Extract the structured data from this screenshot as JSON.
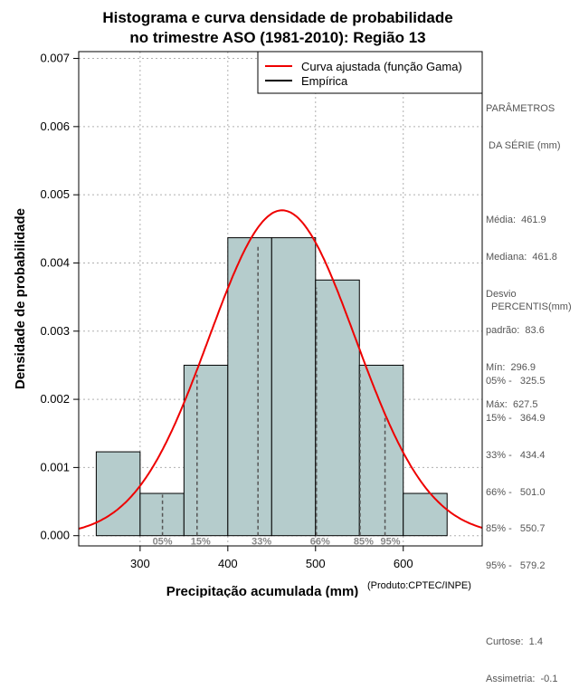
{
  "chart_data": {
    "type": "histogram",
    "title_line1": "Histograma e curva densidade de probabilidade",
    "title_line2": "no trimestre ASO (1981-2010): Região 13",
    "xlabel": "Precipitação acumulada (mm)",
    "ylabel": "Densidade de probabilidade",
    "credit": "(Produto:CPTEC/INPE)",
    "xlim": [
      230,
      690
    ],
    "ylim": [
      -0.00015,
      0.0071
    ],
    "x_ticks": [
      300,
      400,
      500,
      600
    ],
    "y_ticks": [
      0.0,
      0.001,
      0.002,
      0.003,
      0.004,
      0.005,
      0.006,
      0.007
    ],
    "y_tick_labels": [
      "0.000",
      "0.001",
      "0.002",
      "0.003",
      "0.004",
      "0.005",
      "0.006",
      "0.007"
    ],
    "grid": true,
    "bins": [
      {
        "start": 250,
        "end": 300,
        "density": 0.00123
      },
      {
        "start": 300,
        "end": 350,
        "density": 0.00062
      },
      {
        "start": 350,
        "end": 400,
        "density": 0.0025
      },
      {
        "start": 400,
        "end": 450,
        "density": 0.00437
      },
      {
        "start": 450,
        "end": 500,
        "density": 0.00437
      },
      {
        "start": 500,
        "end": 550,
        "density": 0.00375
      },
      {
        "start": 550,
        "end": 600,
        "density": 0.0025
      },
      {
        "start": 600,
        "end": 650,
        "density": 0.00062
      }
    ],
    "gamma_curve": {
      "mean": 461.9,
      "sd": 83.6,
      "color": "#ee0000"
    },
    "percentile_lines": [
      {
        "label": "05%",
        "value": 325.5
      },
      {
        "label": "15%",
        "value": 364.9
      },
      {
        "label": "33%",
        "value": 434.4
      },
      {
        "label": "66%",
        "value": 501.0
      },
      {
        "label": "85%",
        "value": 550.7
      },
      {
        "label": "95%",
        "value": 579.2
      }
    ],
    "legend": [
      {
        "label": "Curva ajustada (função Gama)",
        "color": "#ee0000"
      },
      {
        "label": "Empírica",
        "color": "#000000"
      }
    ],
    "bar_color": "#b5cccc"
  },
  "side_panel": {
    "params_title_1": "PARÂMETROS",
    "params_title_2": " DA SÉRIE (mm)",
    "media": "Média:  461.9",
    "mediana": "Mediana:  461.8",
    "desvio_1": "Desvio",
    "desvio_2": "padrão:  83.6",
    "min": "Mín:  296.9",
    "max": "Máx:  627.5",
    "percentis_title": "PERCENTIS(mm)",
    "p05": "05% -   325.5",
    "p15": "15% -   364.9",
    "p33": "33% -   434.4",
    "p66": "66% -   501.0",
    "p85": "85% -   550.7",
    "p95": "95% -   579.2",
    "curtose": "Curtose:  1.4",
    "assimetria": "Assimetria:  -0.1"
  }
}
